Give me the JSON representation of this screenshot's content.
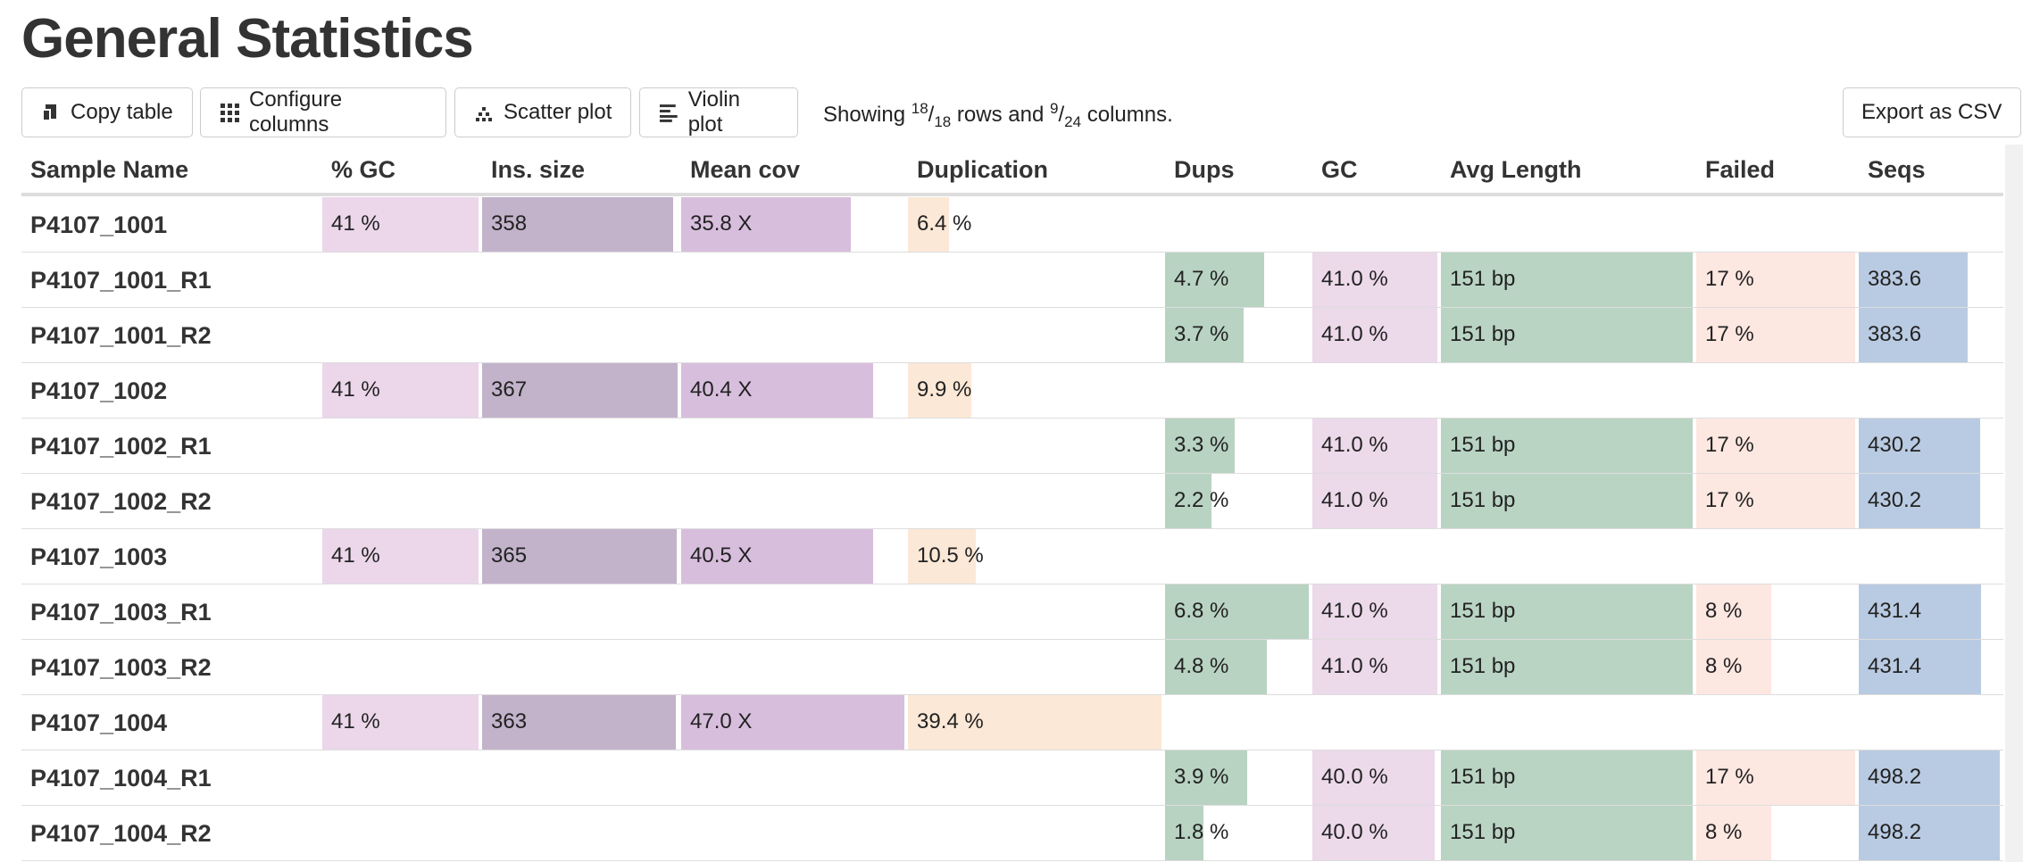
{
  "header": {
    "title": "General Statistics"
  },
  "toolbar": {
    "buttons": [
      "Copy table",
      "Configure columns",
      "Scatter plot",
      "Violin plot"
    ],
    "showing": {
      "prefix": "Showing",
      "rows_shown": "18",
      "separator": "/",
      "rows_total": "18",
      "middle": "rows and",
      "cols_shown": "9",
      "cols_total": "24",
      "suffix": "columns."
    },
    "export": "Export as CSV"
  },
  "table": {
    "columns": [
      "Sample Name",
      "% GC",
      "Ins. size",
      "Mean cov",
      "Duplication",
      "Dups",
      "GC",
      "Avg Length",
      "Failed",
      "Seqs"
    ],
    "rows": [
      [
        "P4107_1001",
        "41 %",
        "358",
        "35.8 X",
        "6.4 %",
        null,
        null,
        null,
        null,
        null
      ],
      [
        "P4107_1001_R1",
        null,
        null,
        null,
        null,
        "4.7 %",
        "41.0 %",
        "151 bp",
        "17 %",
        "383.6"
      ],
      [
        "P4107_1001_R2",
        null,
        null,
        null,
        null,
        "3.7 %",
        "41.0 %",
        "151 bp",
        "17 %",
        "383.6"
      ],
      [
        "P4107_1002",
        "41 %",
        "367",
        "40.4 X",
        "9.9 %",
        null,
        null,
        null,
        null,
        null
      ],
      [
        "P4107_1002_R1",
        null,
        null,
        null,
        null,
        "3.3 %",
        "41.0 %",
        "151 bp",
        "17 %",
        "430.2"
      ],
      [
        "P4107_1002_R2",
        null,
        null,
        null,
        null,
        "2.2 %",
        "41.0 %",
        "151 bp",
        "17 %",
        "430.2"
      ],
      [
        "P4107_1003",
        "41 %",
        "365",
        "40.5 X",
        "10.5 %",
        null,
        null,
        null,
        null,
        null
      ],
      [
        "P4107_1003_R1",
        null,
        null,
        null,
        null,
        "6.8 %",
        "41.0 %",
        "151 bp",
        "8 %",
        "431.4"
      ],
      [
        "P4107_1003_R2",
        null,
        null,
        null,
        null,
        "4.8 %",
        "41.0 %",
        "151 bp",
        "8 %",
        "431.4"
      ],
      [
        "P4107_1004",
        "41 %",
        "363",
        "47.0 X",
        "39.4 %",
        null,
        null,
        null,
        null,
        null
      ],
      [
        "P4107_1004_R1",
        null,
        null,
        null,
        null,
        "3.9 %",
        "40.0 %",
        "151 bp",
        "17 %",
        "498.2"
      ],
      [
        "P4107_1004_R2",
        null,
        null,
        null,
        null,
        "1.8 %",
        "40.0 %",
        "151 bp",
        "8 %",
        "498.2"
      ]
    ]
  }
}
